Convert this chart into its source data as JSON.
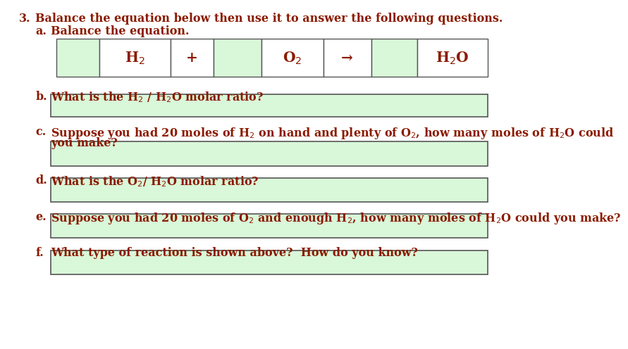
{
  "bg_color": "#ffffff",
  "box_fill": "#d9f7d9",
  "box_edge": "#555555",
  "text_color": "#8B1A00",
  "title_num": "3.",
  "title_text": "Balance the equation below then use it to answer the following questions.",
  "a_label": "a.",
  "a_text": "Balance the equation.",
  "b_label": "b.",
  "b_text": "What is the H$_2$ / H$_2$O molar ratio?",
  "c_label": "c.",
  "c_line1": "Suppose you had 20 moles of H$_2$ on hand and plenty of O$_2$, how many moles of H$_2$O could",
  "c_line2": "you make?",
  "d_label": "d.",
  "d_text": "What is the O$_2$/ H$_2$O molar ratio?",
  "e_label": "e.",
  "e_text": "Suppose you had 20 moles of O$_2$ and enough H$_2$, how many moles of H$_2$O could you make?",
  "f_label": "f.",
  "f_text": "What type of reaction is shown above?  How do you know?",
  "eq_cells": [
    "",
    "H$_2$",
    "+",
    "",
    "O$_2$",
    "→",
    "",
    "H$_2$O"
  ],
  "eq_cell_fills": [
    "#d9f7d9",
    "#ffffff",
    "#ffffff",
    "#d9f7d9",
    "#ffffff",
    "#ffffff",
    "#d9f7d9",
    "#ffffff"
  ],
  "eq_col_ratios": [
    0.095,
    0.155,
    0.095,
    0.105,
    0.135,
    0.105,
    0.1,
    0.155
  ],
  "fs": 11.5
}
